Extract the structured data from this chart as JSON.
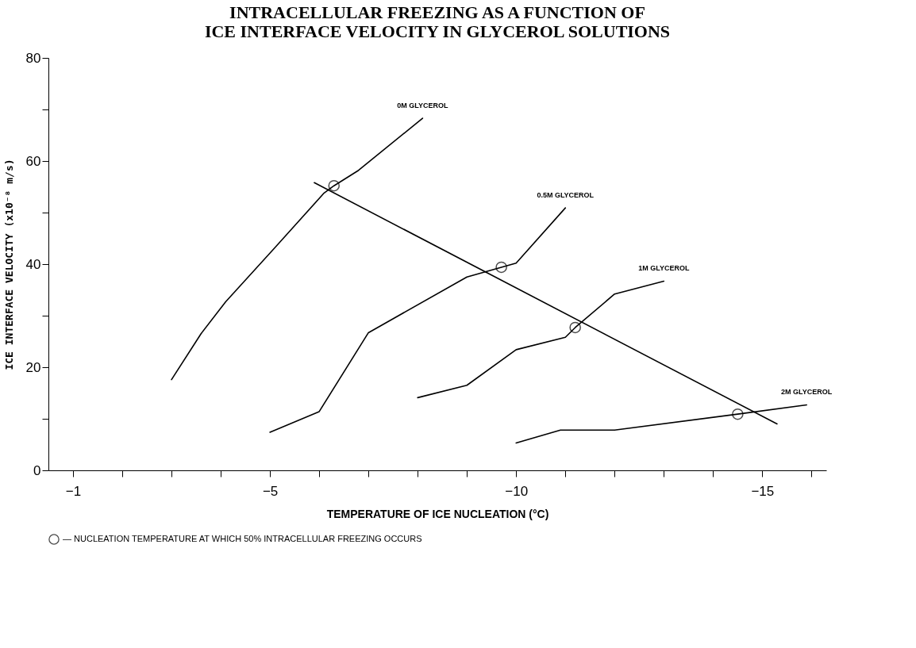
{
  "chart_data": {
    "type": "line",
    "title": "INTRACELLULAR FREEZING AS A FUNCTION OF\nICE INTERFACE VELOCITY IN GLYCEROL SOLUTIONS",
    "xlabel": "TEMPERATURE OF ICE NUCLEATION (°C)",
    "ylabel": "ICE INTERFACE VELOCITY (x10⁻⁸ m/s)",
    "xlim": [
      -0.5,
      -16.3
    ],
    "ylim": [
      0,
      80
    ],
    "xticks": [
      -1,
      {
        "value": -2,
        "label": null
      },
      {
        "value": -3,
        "label": null
      },
      {
        "value": -4,
        "label": null
      },
      -5,
      {
        "value": -6,
        "label": null
      },
      {
        "value": -7,
        "label": null
      },
      {
        "value": -8,
        "label": null
      },
      {
        "value": -9,
        "label": null
      },
      -10,
      {
        "value": -11,
        "label": null
      },
      {
        "value": -12,
        "label": null
      },
      {
        "value": -13,
        "label": null
      },
      {
        "value": -14,
        "label": null
      },
      -15,
      {
        "value": -16,
        "label": null
      }
    ],
    "yticks": [
      0,
      {
        "value": 10,
        "label": null
      },
      20,
      {
        "value": 30,
        "label": null
      },
      40,
      {
        "value": 50,
        "label": null
      },
      60,
      {
        "value": 70,
        "label": null
      },
      80
    ],
    "grid": false,
    "legend": "bottom",
    "line_style": "solid",
    "series": [
      {
        "name": "0M GLYCEROL",
        "color": "#000000",
        "x": [
          -3.0,
          -3.6,
          -4.1,
          -5.1,
          -6.1,
          -6.3,
          -6.8,
          -8.1
        ],
        "values": [
          17.6,
          26.5,
          32.7,
          43.2,
          53.8,
          55.2,
          58.2,
          68.3
        ]
      },
      {
        "name": "0.5M GLYCEROL",
        "color": "#000000",
        "x": [
          -5.0,
          -6.0,
          -7.0,
          -9.0,
          -9.7,
          -10.0,
          -11.0
        ],
        "values": [
          7.4,
          11.4,
          26.7,
          37.5,
          39.4,
          40.2,
          50.9
        ]
      },
      {
        "name": "1M GLYCEROL",
        "color": "#000000",
        "x": [
          -8.0,
          -9.0,
          -10.0,
          -11.0,
          -11.2,
          -12.0,
          -13.0
        ],
        "values": [
          14.1,
          16.5,
          23.4,
          25.8,
          27.7,
          34.2,
          36.7
        ]
      },
      {
        "name": "2M GLYCEROL",
        "color": "#000000",
        "x": [
          -10.0,
          -10.9,
          -12.0,
          -14.5,
          -15.9
        ],
        "values": [
          5.3,
          7.8,
          7.8,
          10.9,
          12.7
        ]
      },
      {
        "color": "#000000",
        "x": [
          -5.9,
          -15.3
        ],
        "values": [
          55.8,
          9.0
        ]
      },
      {
        "type": "scatter",
        "marker": "circle",
        "name": "— NUCLEATION TEMPERATURE AT WHICH 50% INTRACELLULAR FREEZING OCCURS",
        "color": "#000000",
        "x": [
          -6.3,
          -9.7,
          -11.2,
          -14.5
        ],
        "values": [
          55.2,
          39.4,
          27.7,
          10.9
        ]
      }
    ]
  }
}
